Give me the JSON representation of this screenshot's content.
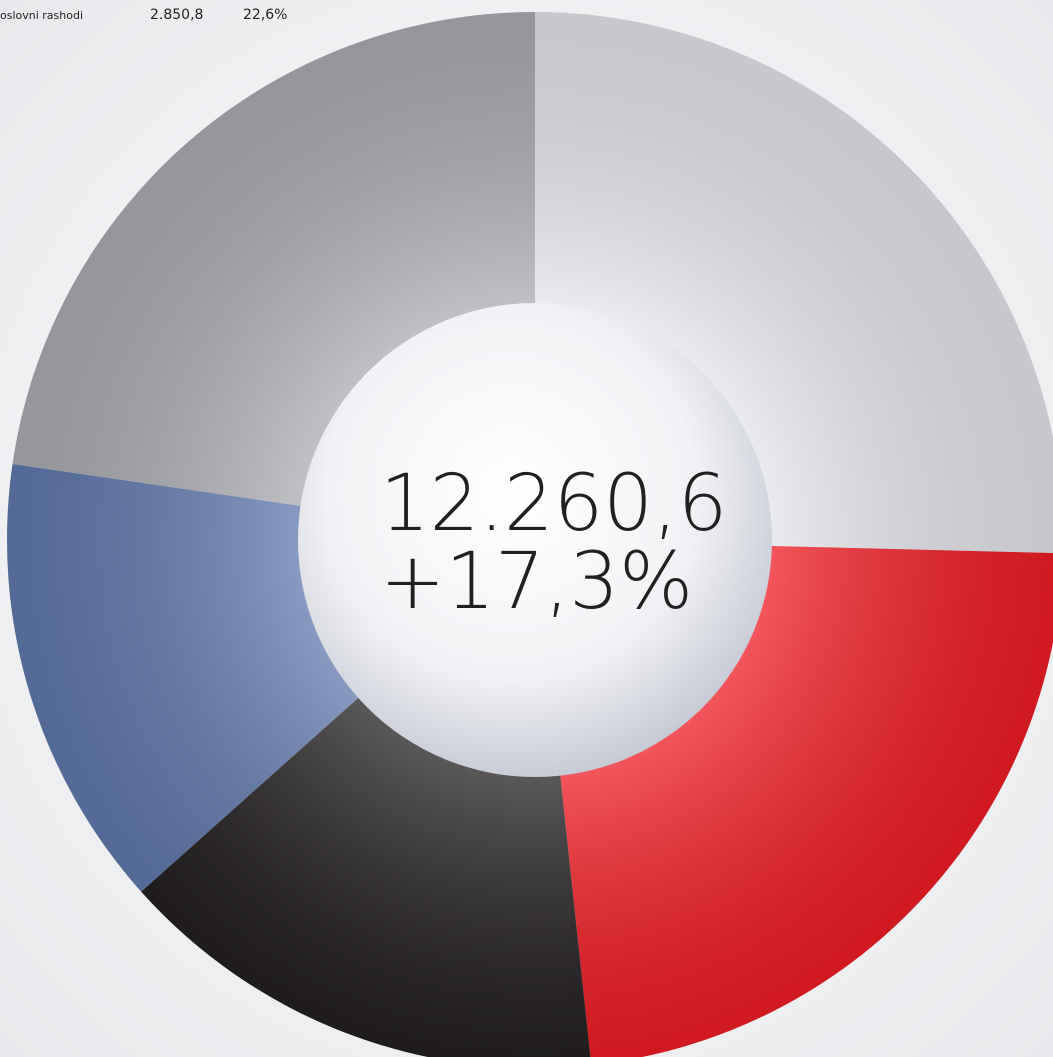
{
  "chart_data": {
    "type": "donut",
    "values": [
      25.4,
      22.9,
      15.1,
      13.9,
      22.7
    ],
    "colors": [
      "#e2e3e8",
      "#ed1c24",
      "#231f20",
      "#5f78ab",
      "#a9abb0"
    ],
    "center_labels": [
      "12.260,6",
      "+17,3%"
    ],
    "legend": [
      {
        "name": "oslovni rashodi",
        "value_label": "2.850,8",
        "share_label": "22,6%"
      }
    ]
  }
}
